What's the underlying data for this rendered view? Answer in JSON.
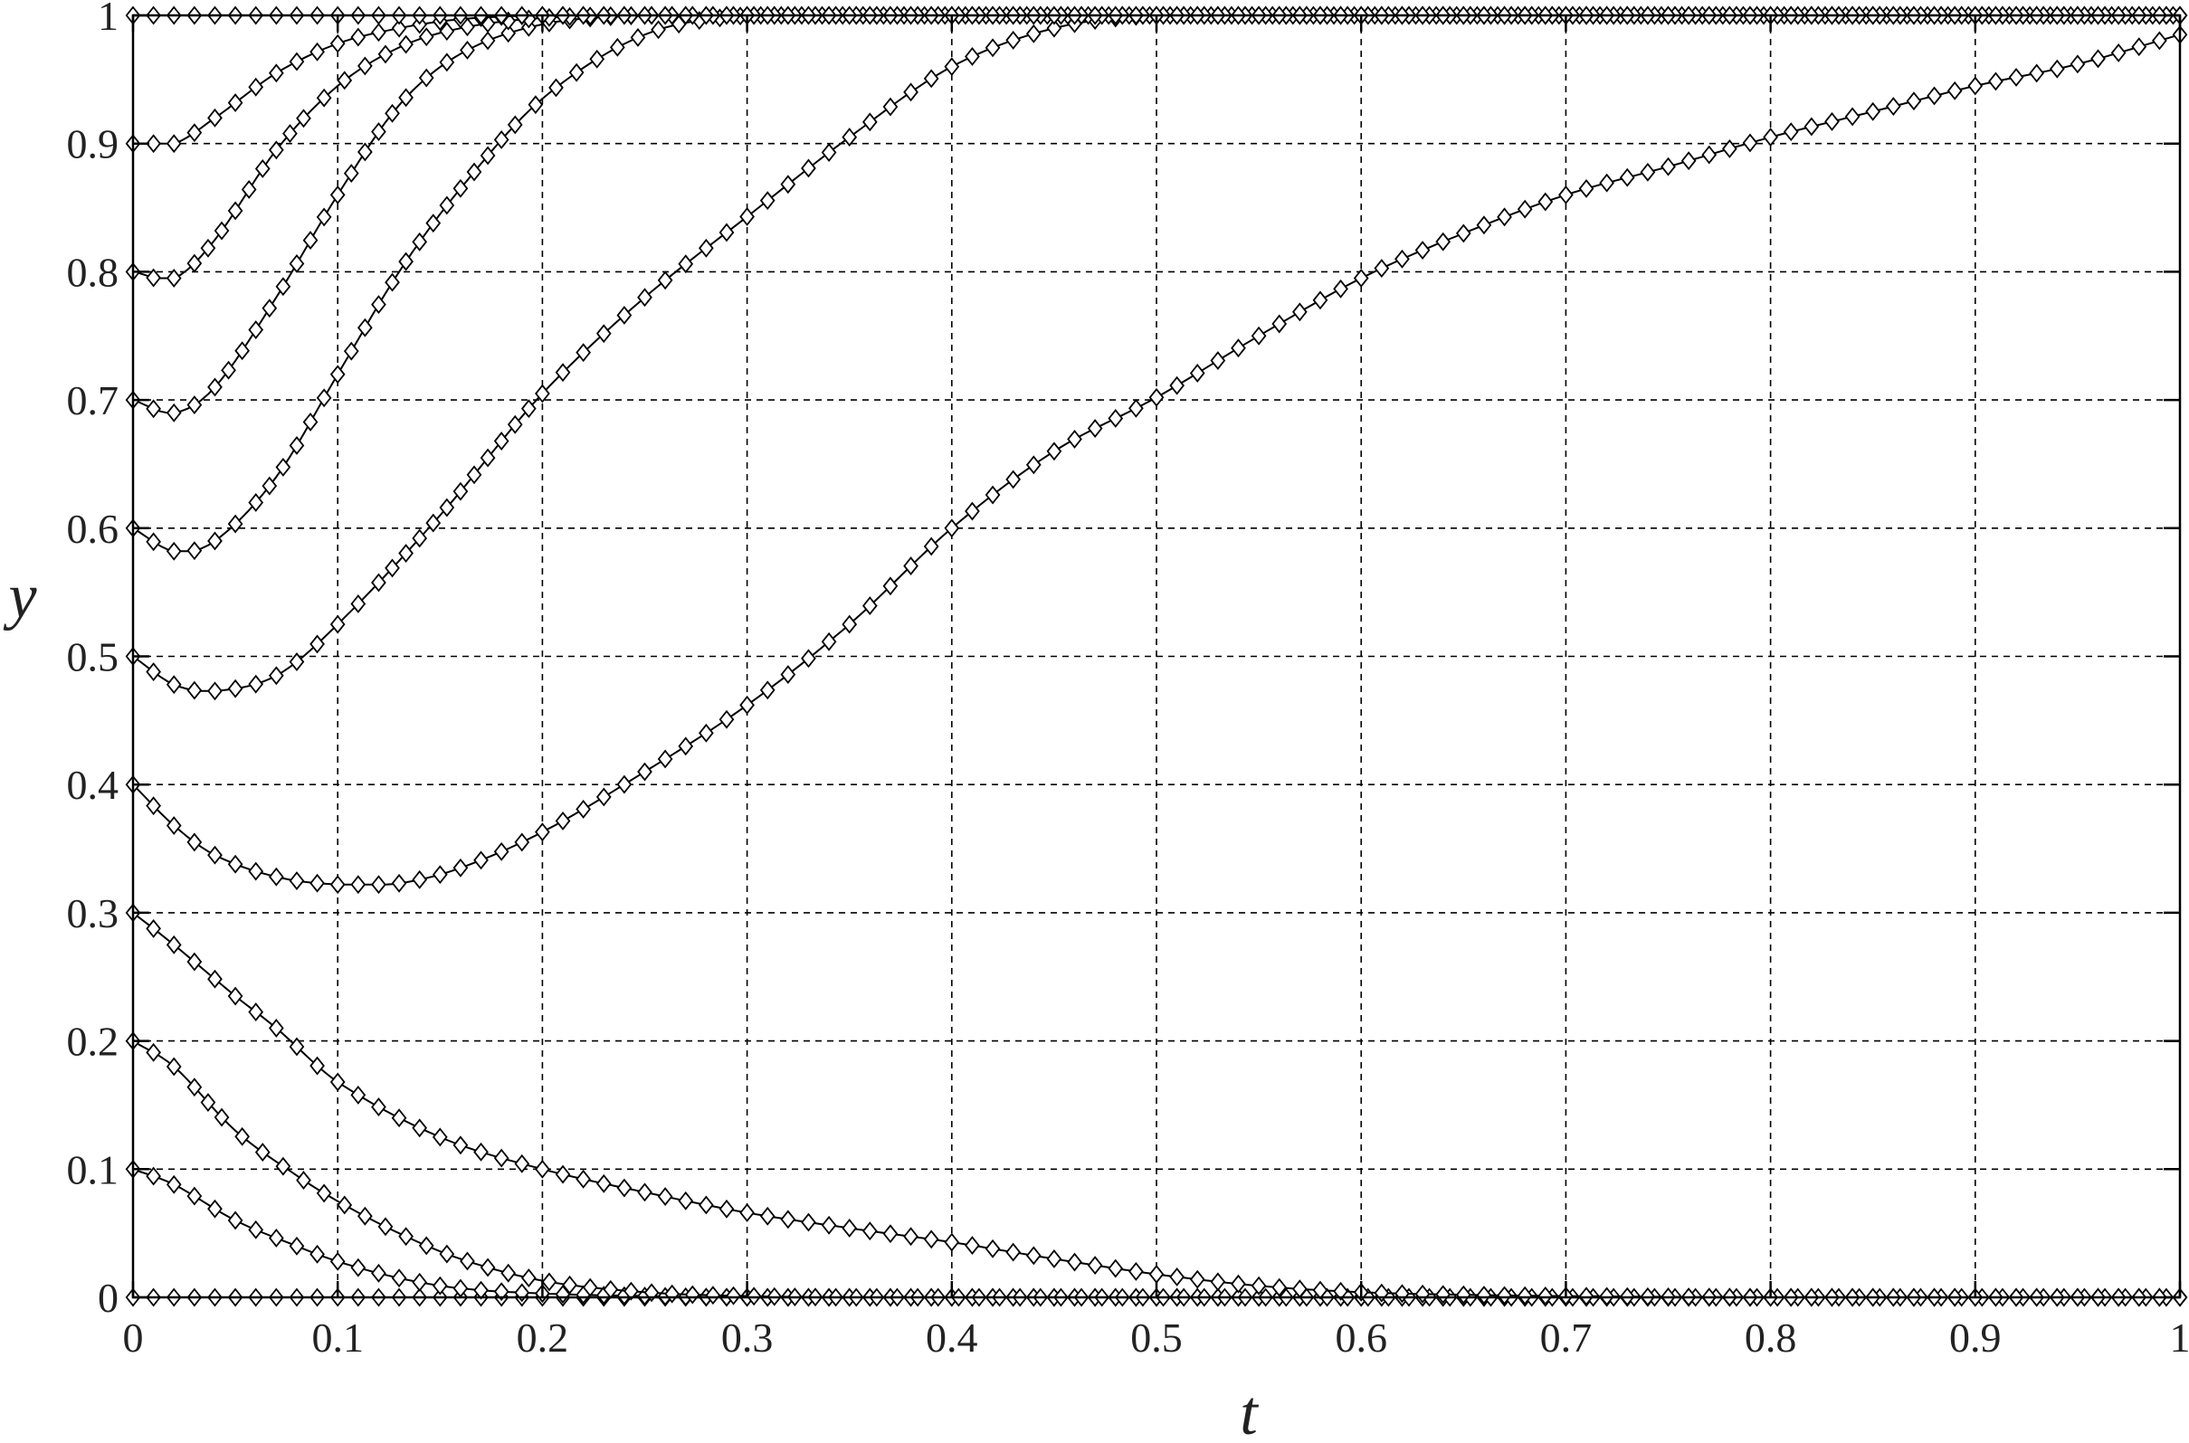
{
  "chart_data": {
    "type": "line",
    "title": "",
    "xlabel": "t",
    "ylabel": "y",
    "xlim": [
      0,
      1
    ],
    "ylim": [
      0,
      1
    ],
    "grid": true,
    "legend": "none",
    "marker": "diamond",
    "color": "#000000",
    "x_ticks": [
      "0",
      "0.1",
      "0.2",
      "0.3",
      "0.4",
      "0.5",
      "0.6",
      "0.7",
      "0.8",
      "0.9",
      "1"
    ],
    "y_ticks": [
      "0",
      "0.1",
      "0.2",
      "0.3",
      "0.4",
      "0.5",
      "0.6",
      "0.7",
      "0.8",
      "0.9",
      "1"
    ],
    "series": [
      {
        "x": [
          0,
          0.1,
          0.2,
          0.3,
          0.4,
          0.5,
          0.6,
          0.7,
          0.8,
          0.9,
          1.0
        ],
        "y": [
          0,
          0,
          0,
          0,
          0,
          0,
          0,
          0,
          0,
          0,
          0
        ]
      },
      {
        "x": [
          0,
          0.02,
          0.05,
          0.08,
          0.1,
          0.13,
          0.16,
          0.2,
          0.25,
          0.3,
          0.4,
          0.5,
          1.0
        ],
        "y": [
          0.1,
          0.088,
          0.06,
          0.04,
          0.028,
          0.015,
          0.007,
          0.003,
          0.001,
          0,
          0,
          0,
          0
        ]
      },
      {
        "x": [
          0,
          0.02,
          0.05,
          0.08,
          0.1,
          0.13,
          0.16,
          0.2,
          0.25,
          0.3,
          0.35,
          0.4,
          0.5,
          1.0
        ],
        "y": [
          0.2,
          0.18,
          0.13,
          0.095,
          0.075,
          0.05,
          0.03,
          0.013,
          0.004,
          0.001,
          0,
          0,
          0,
          0
        ]
      },
      {
        "x": [
          0,
          0.02,
          0.05,
          0.07,
          0.1,
          0.15,
          0.2,
          0.25,
          0.3,
          0.35,
          0.4,
          0.45,
          0.5,
          0.55,
          0.6,
          0.65,
          0.7,
          0.8,
          1.0
        ],
        "y": [
          0.3,
          0.275,
          0.235,
          0.21,
          0.168,
          0.125,
          0.1,
          0.082,
          0.066,
          0.054,
          0.043,
          0.03,
          0.018,
          0.009,
          0.004,
          0.002,
          0.001,
          0,
          0
        ]
      },
      {
        "x": [
          0,
          0.02,
          0.04,
          0.07,
          0.1,
          0.13,
          0.16,
          0.2,
          0.25,
          0.3,
          0.35,
          0.4,
          0.45,
          0.5,
          0.55,
          0.6,
          0.65,
          0.7,
          0.75,
          0.8,
          0.85,
          0.9,
          0.95,
          1.0
        ],
        "y": [
          0.4,
          0.368,
          0.345,
          0.328,
          0.322,
          0.323,
          0.335,
          0.363,
          0.41,
          0.462,
          0.525,
          0.6,
          0.66,
          0.702,
          0.75,
          0.795,
          0.83,
          0.86,
          0.882,
          0.905,
          0.925,
          0.945,
          0.962,
          0.985
        ]
      },
      {
        "x": [
          0,
          0.02,
          0.04,
          0.07,
          0.1,
          0.15,
          0.2,
          0.25,
          0.3,
          0.35,
          0.4,
          0.45,
          0.5,
          0.6,
          0.7,
          0.8,
          0.9,
          1.0
        ],
        "y": [
          0.5,
          0.478,
          0.473,
          0.485,
          0.525,
          0.61,
          0.705,
          0.78,
          0.843,
          0.905,
          0.96,
          0.99,
          1.0,
          1.0,
          1.0,
          1.0,
          1.0,
          1.0
        ]
      },
      {
        "x": [
          0,
          0.02,
          0.04,
          0.07,
          0.1,
          0.13,
          0.16,
          0.2,
          0.25,
          0.3,
          0.35,
          0.4,
          0.5,
          0.6,
          0.7,
          0.8,
          0.9,
          1.0
        ],
        "y": [
          0.6,
          0.582,
          0.59,
          0.64,
          0.72,
          0.8,
          0.865,
          0.935,
          0.985,
          1.0,
          1.0,
          1.0,
          1.0,
          1.0,
          1.0,
          1.0,
          1.0,
          1.0
        ]
      },
      {
        "x": [
          0,
          0.02,
          0.04,
          0.07,
          0.1,
          0.13,
          0.16,
          0.2,
          0.25,
          0.3,
          0.4,
          0.5,
          0.6,
          0.7,
          0.8,
          0.9,
          1.0
        ],
        "y": [
          0.7,
          0.69,
          0.71,
          0.78,
          0.86,
          0.93,
          0.97,
          0.993,
          1.0,
          1.0,
          1.0,
          1.0,
          1.0,
          1.0,
          1.0,
          1.0,
          1.0
        ]
      },
      {
        "x": [
          0,
          0.02,
          0.04,
          0.07,
          0.1,
          0.13,
          0.16,
          0.2,
          0.25,
          0.3,
          0.4,
          0.5,
          0.6,
          0.7,
          0.8,
          0.9,
          1.0
        ],
        "y": [
          0.8,
          0.795,
          0.825,
          0.895,
          0.945,
          0.975,
          0.99,
          0.998,
          1.0,
          1.0,
          1.0,
          1.0,
          1.0,
          1.0,
          1.0,
          1.0,
          1.0
        ]
      },
      {
        "x": [
          0,
          0.02,
          0.04,
          0.07,
          0.1,
          0.13,
          0.16,
          0.2,
          0.25,
          0.3,
          0.4,
          0.5,
          0.6,
          0.7,
          0.8,
          0.9,
          1.0
        ],
        "y": [
          0.9,
          0.9,
          0.92,
          0.955,
          0.978,
          0.99,
          0.997,
          1.0,
          1.0,
          1.0,
          1.0,
          1.0,
          1.0,
          1.0,
          1.0,
          1.0,
          1.0
        ]
      },
      {
        "x": [
          0,
          0.1,
          0.2,
          0.3,
          0.4,
          0.5,
          0.6,
          0.7,
          0.8,
          0.9,
          1.0
        ],
        "y": [
          1,
          1,
          1,
          1,
          1,
          1,
          1,
          1,
          1,
          1,
          1
        ]
      }
    ]
  }
}
